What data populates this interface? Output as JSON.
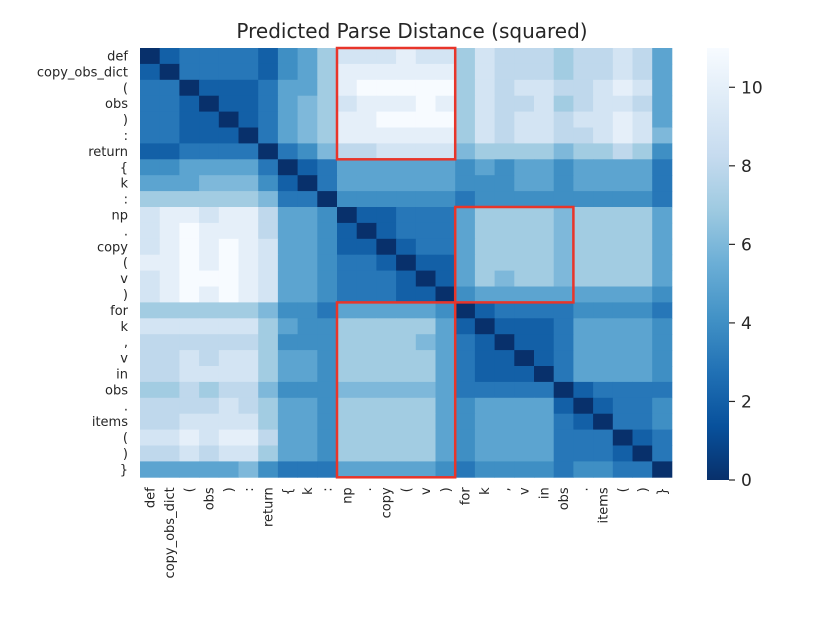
{
  "chart_data": {
    "type": "heatmap",
    "title": "Predicted Parse Distance (squared)",
    "xlabel": "",
    "ylabel": "",
    "tokens": [
      "def",
      "copy_obs_dict",
      "(",
      "obs",
      ")",
      ":",
      "return",
      "{",
      "k",
      ":",
      "np",
      ".",
      "copy",
      "(",
      "v",
      ")",
      "for",
      "k",
      ",",
      "v",
      "in",
      "obs",
      ".",
      "items",
      "(",
      ")",
      "}"
    ],
    "x_tick_labels": [
      "def",
      "copy_obs_dict",
      "(",
      "obs",
      ")",
      ":",
      "return",
      "{",
      "k",
      ":",
      "np",
      ".",
      "copy",
      "(",
      "v",
      ")",
      "for",
      "k",
      ",",
      "v",
      "in",
      "obs",
      ".",
      "items",
      "(",
      ")",
      "}"
    ],
    "y_tick_labels": [
      "def",
      "copy_obs_dict",
      "(",
      "obs",
      ")",
      ":",
      "return",
      "{",
      "k",
      ":",
      "np",
      ".",
      "copy",
      "(",
      "v",
      ")",
      "for",
      "k",
      ",",
      "v",
      "in",
      "obs",
      ".",
      "items",
      "(",
      ")",
      "}"
    ],
    "colormap": "Blues_r",
    "vmin": 0,
    "vmax": 11,
    "colorbar": {
      "ticks": [
        0,
        2,
        4,
        6,
        8,
        10
      ]
    },
    "values": [
      [
        0,
        2,
        3,
        3,
        3,
        3,
        2,
        4,
        5,
        7,
        9,
        9,
        9,
        10,
        9,
        9,
        7,
        9,
        8,
        8,
        8,
        7,
        8,
        8,
        9,
        8,
        5
      ],
      [
        2,
        0,
        3,
        3,
        3,
        3,
        2,
        4,
        5,
        7,
        10,
        10,
        10,
        10,
        10,
        10,
        7,
        9,
        8,
        8,
        8,
        7,
        8,
        8,
        9,
        8,
        5
      ],
      [
        3,
        3,
        0,
        2,
        2,
        2,
        3,
        5,
        5,
        7,
        10,
        11,
        11,
        11,
        11,
        11,
        7,
        9,
        8,
        9,
        9,
        8,
        8,
        9,
        10,
        9,
        5
      ],
      [
        3,
        3,
        2,
        0,
        2,
        2,
        3,
        5,
        6,
        7,
        9,
        10,
        10,
        10,
        11,
        10,
        7,
        9,
        8,
        8,
        9,
        7,
        8,
        9,
        9,
        8,
        5
      ],
      [
        3,
        3,
        2,
        2,
        0,
        2,
        3,
        5,
        6,
        7,
        10,
        10,
        11,
        11,
        11,
        11,
        7,
        9,
        8,
        9,
        9,
        8,
        9,
        9,
        10,
        9,
        5
      ],
      [
        3,
        3,
        2,
        2,
        2,
        0,
        3,
        5,
        6,
        7,
        10,
        10,
        10,
        10,
        10,
        10,
        7,
        9,
        8,
        9,
        9,
        8,
        8,
        9,
        10,
        9,
        6
      ],
      [
        2,
        2,
        3,
        3,
        3,
        3,
        0,
        3,
        4,
        6,
        8,
        8,
        9,
        9,
        9,
        9,
        6,
        7,
        7,
        7,
        7,
        6,
        7,
        7,
        8,
        7,
        4
      ],
      [
        4,
        4,
        5,
        5,
        5,
        5,
        3,
        0,
        2,
        3,
        5,
        5,
        5,
        5,
        5,
        5,
        4,
        5,
        4,
        5,
        5,
        4,
        5,
        5,
        5,
        5,
        3
      ],
      [
        5,
        5,
        5,
        6,
        6,
        6,
        4,
        2,
        0,
        3,
        5,
        5,
        5,
        5,
        5,
        5,
        4,
        4,
        4,
        5,
        5,
        4,
        5,
        5,
        5,
        5,
        3
      ],
      [
        7,
        7,
        7,
        7,
        7,
        7,
        6,
        3,
        3,
        0,
        4,
        4,
        4,
        4,
        4,
        4,
        3,
        4,
        4,
        4,
        4,
        4,
        4,
        4,
        4,
        4,
        3
      ],
      [
        9,
        10,
        10,
        9,
        10,
        10,
        8,
        5,
        5,
        4,
        0,
        2,
        2,
        3,
        3,
        3,
        5,
        7,
        7,
        7,
        7,
        6,
        7,
        7,
        7,
        7,
        5
      ],
      [
        9,
        10,
        11,
        10,
        10,
        10,
        8,
        5,
        5,
        4,
        2,
        0,
        2,
        3,
        3,
        3,
        5,
        7,
        7,
        7,
        7,
        6,
        7,
        7,
        7,
        7,
        5
      ],
      [
        9,
        10,
        11,
        10,
        11,
        10,
        9,
        5,
        5,
        4,
        2,
        2,
        0,
        2,
        3,
        3,
        5,
        7,
        7,
        7,
        7,
        6,
        7,
        7,
        7,
        7,
        5
      ],
      [
        10,
        10,
        11,
        10,
        11,
        10,
        9,
        5,
        5,
        4,
        3,
        3,
        2,
        0,
        2,
        2,
        5,
        7,
        7,
        7,
        7,
        6,
        7,
        7,
        7,
        7,
        5
      ],
      [
        9,
        10,
        11,
        11,
        11,
        10,
        9,
        5,
        5,
        4,
        3,
        3,
        3,
        2,
        0,
        2,
        5,
        7,
        6,
        7,
        7,
        6,
        7,
        7,
        7,
        7,
        5
      ],
      [
        9,
        10,
        11,
        10,
        11,
        10,
        9,
        5,
        5,
        4,
        3,
        3,
        3,
        2,
        2,
        0,
        4,
        5,
        5,
        5,
        5,
        5,
        5,
        5,
        5,
        5,
        4
      ],
      [
        7,
        7,
        7,
        7,
        7,
        7,
        6,
        4,
        4,
        3,
        5,
        5,
        5,
        5,
        5,
        4,
        0,
        2,
        3,
        3,
        3,
        3,
        4,
        4,
        4,
        4,
        3
      ],
      [
        9,
        9,
        9,
        9,
        9,
        9,
        7,
        5,
        4,
        4,
        7,
        7,
        7,
        7,
        7,
        5,
        2,
        0,
        2,
        2,
        2,
        3,
        5,
        5,
        5,
        5,
        4
      ],
      [
        8,
        8,
        8,
        8,
        8,
        8,
        7,
        4,
        4,
        4,
        7,
        7,
        7,
        7,
        6,
        5,
        3,
        2,
        0,
        2,
        2,
        3,
        5,
        5,
        5,
        5,
        4
      ],
      [
        8,
        8,
        9,
        8,
        9,
        9,
        7,
        5,
        5,
        4,
        7,
        7,
        7,
        7,
        7,
        5,
        3,
        2,
        2,
        0,
        2,
        3,
        5,
        5,
        5,
        5,
        4
      ],
      [
        8,
        8,
        9,
        9,
        9,
        9,
        7,
        5,
        5,
        4,
        7,
        7,
        7,
        7,
        7,
        5,
        3,
        2,
        2,
        2,
        0,
        3,
        5,
        5,
        5,
        5,
        4
      ],
      [
        7,
        7,
        8,
        7,
        8,
        8,
        6,
        4,
        4,
        4,
        6,
        6,
        6,
        6,
        6,
        5,
        3,
        3,
        3,
        3,
        3,
        0,
        2,
        3,
        3,
        3,
        3
      ],
      [
        8,
        8,
        8,
        8,
        9,
        8,
        7,
        5,
        5,
        4,
        7,
        7,
        7,
        7,
        7,
        5,
        4,
        5,
        5,
        5,
        5,
        2,
        0,
        2,
        3,
        3,
        4
      ],
      [
        8,
        8,
        9,
        9,
        9,
        9,
        7,
        5,
        5,
        4,
        7,
        7,
        7,
        7,
        7,
        5,
        4,
        5,
        5,
        5,
        5,
        3,
        2,
        0,
        3,
        3,
        4
      ],
      [
        9,
        9,
        10,
        9,
        10,
        10,
        8,
        5,
        5,
        4,
        7,
        7,
        7,
        7,
        7,
        5,
        4,
        5,
        5,
        5,
        5,
        3,
        3,
        3,
        0,
        2,
        3
      ],
      [
        8,
        8,
        9,
        8,
        9,
        9,
        7,
        5,
        5,
        4,
        7,
        7,
        7,
        7,
        7,
        5,
        4,
        5,
        5,
        5,
        5,
        3,
        3,
        3,
        2,
        0,
        3
      ],
      [
        5,
        5,
        5,
        5,
        5,
        6,
        4,
        3,
        3,
        3,
        5,
        5,
        5,
        5,
        5,
        4,
        3,
        4,
        4,
        4,
        4,
        3,
        4,
        4,
        3,
        3,
        0
      ]
    ],
    "highlight_boxes": [
      {
        "row_range": [
          0,
          6
        ],
        "col_range": [
          10,
          15
        ]
      },
      {
        "row_range": [
          10,
          15
        ],
        "col_range": [
          16,
          21
        ]
      },
      {
        "row_range": [
          16,
          26
        ],
        "col_range": [
          10,
          15
        ]
      }
    ],
    "highlight_color": "#e8352a"
  }
}
